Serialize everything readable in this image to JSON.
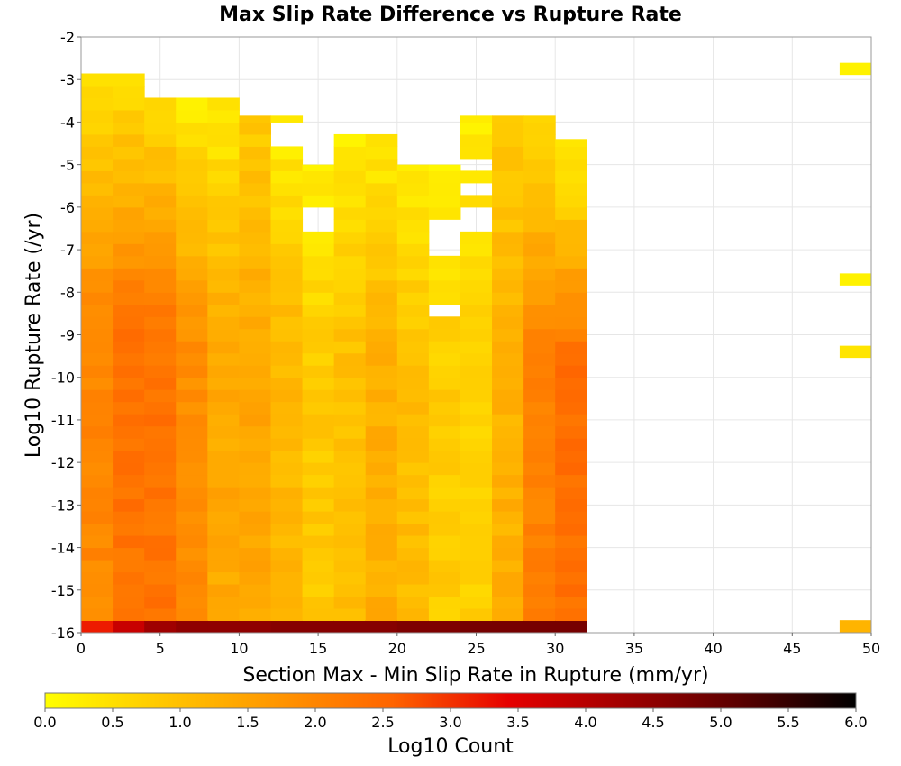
{
  "chart_data": {
    "type": "heatmap",
    "title": "Max Slip Rate Difference vs Rupture Rate",
    "xlabel": "Section Max - Min Slip Rate in Rupture (mm/yr)",
    "ylabel": "Log10 Rupture Rate (/yr)",
    "xlim": [
      0,
      50
    ],
    "ylim": [
      -16,
      -2
    ],
    "xticks": [
      "0",
      "5",
      "10",
      "15",
      "20",
      "25",
      "30",
      "35",
      "40",
      "45",
      "50"
    ],
    "yticks": [
      "-2",
      "-3",
      "-4",
      "-5",
      "-6",
      "-7",
      "-8",
      "-9",
      "-10",
      "-11",
      "-12",
      "-13",
      "-14",
      "-15",
      "-16"
    ],
    "grid": true,
    "x_bin_width": 2,
    "y_bin_height": 0.2857,
    "y_bin_start": -16,
    "colorbar": {
      "label": "Log10 Count",
      "range": [
        0,
        6
      ],
      "ticks": [
        "0.0",
        "0.5",
        "1.0",
        "1.5",
        "2.0",
        "2.5",
        "3.0",
        "3.5",
        "4.0",
        "4.5",
        "5.0",
        "5.5",
        "6.0"
      ],
      "colors": [
        "#ffff00",
        "#ffc800",
        "#ff9600",
        "#ff6400",
        "#e60000",
        "#a00000",
        "#5a0000",
        "#000000"
      ]
    },
    "columns": [
      {
        "x_start": 0,
        "y_top": -2.75,
        "bottom": 3.2,
        "peak": 1.95,
        "top": 0.5
      },
      {
        "x_start": 2,
        "y_top": -2.75,
        "bottom": 3.8,
        "peak": 2.3,
        "top": 0.5
      },
      {
        "x_start": 4,
        "y_top": -3.3,
        "bottom": 4.3,
        "peak": 2.3,
        "top": 0.6
      },
      {
        "x_start": 6,
        "y_top": -3.3,
        "bottom": 4.5,
        "peak": 1.85,
        "top": 0.3
      },
      {
        "x_start": 8,
        "y_top": -3.3,
        "bottom": 4.5,
        "peak": 1.4,
        "top": 0.3
      },
      {
        "x_start": 10,
        "y_top": -3.85,
        "bottom": 4.5,
        "peak": 1.45,
        "top": 0.8
      },
      {
        "x_start": 12,
        "y_top": -3.85,
        "bottom": 4.6,
        "peak": 1.15,
        "top": 0.3
      },
      {
        "x_start": 14,
        "y_top": -5.0,
        "bottom": 4.6,
        "peak": 0.85,
        "top": 0.3
      },
      {
        "x_start": 16,
        "y_top": -4.15,
        "bottom": 4.6,
        "peak": 1.0,
        "top": 0.3
      },
      {
        "x_start": 18,
        "y_top": -4.15,
        "bottom": 4.6,
        "peak": 1.3,
        "top": 0.3
      },
      {
        "x_start": 20,
        "y_top": -5.0,
        "bottom": 4.7,
        "peak": 1.05,
        "top": 0.3
      },
      {
        "x_start": 22,
        "y_top": -5.0,
        "bottom": 4.7,
        "peak": 0.8,
        "top": 0.3
      },
      {
        "x_start": 24,
        "y_top": -3.85,
        "bottom": 4.8,
        "peak": 0.7,
        "top": 0.3
      },
      {
        "x_start": 26,
        "y_top": -3.85,
        "bottom": 4.8,
        "peak": 1.25,
        "top": 0.8
      },
      {
        "x_start": 28,
        "y_top": -3.85,
        "bottom": 4.8,
        "peak": 2.05,
        "top": 0.5
      },
      {
        "x_start": 30,
        "y_top": -4.4,
        "bottom": 4.8,
        "peak": 2.4,
        "top": 0.3
      }
    ],
    "gaps": [
      {
        "x_start": 12,
        "y": -4.3
      },
      {
        "x_start": 14,
        "y": -6.3
      },
      {
        "x_start": 22,
        "y": -6.6
      },
      {
        "x_start": 22,
        "y": -7.0
      },
      {
        "x_start": 22,
        "y": -8.4
      },
      {
        "x_start": 24,
        "y": -5.0
      },
      {
        "x_start": 24,
        "y": -5.6
      },
      {
        "x_start": 24,
        "y": -6.3
      }
    ],
    "extra_cells": [
      {
        "x_start": 48,
        "y": -2.75,
        "value": 0.2
      },
      {
        "x_start": 48,
        "y": -7.7,
        "value": 0.2
      },
      {
        "x_start": 48,
        "y": -9.4,
        "value": 0.4
      },
      {
        "x_start": 48,
        "y": -15.85,
        "value": 1.2
      }
    ]
  }
}
